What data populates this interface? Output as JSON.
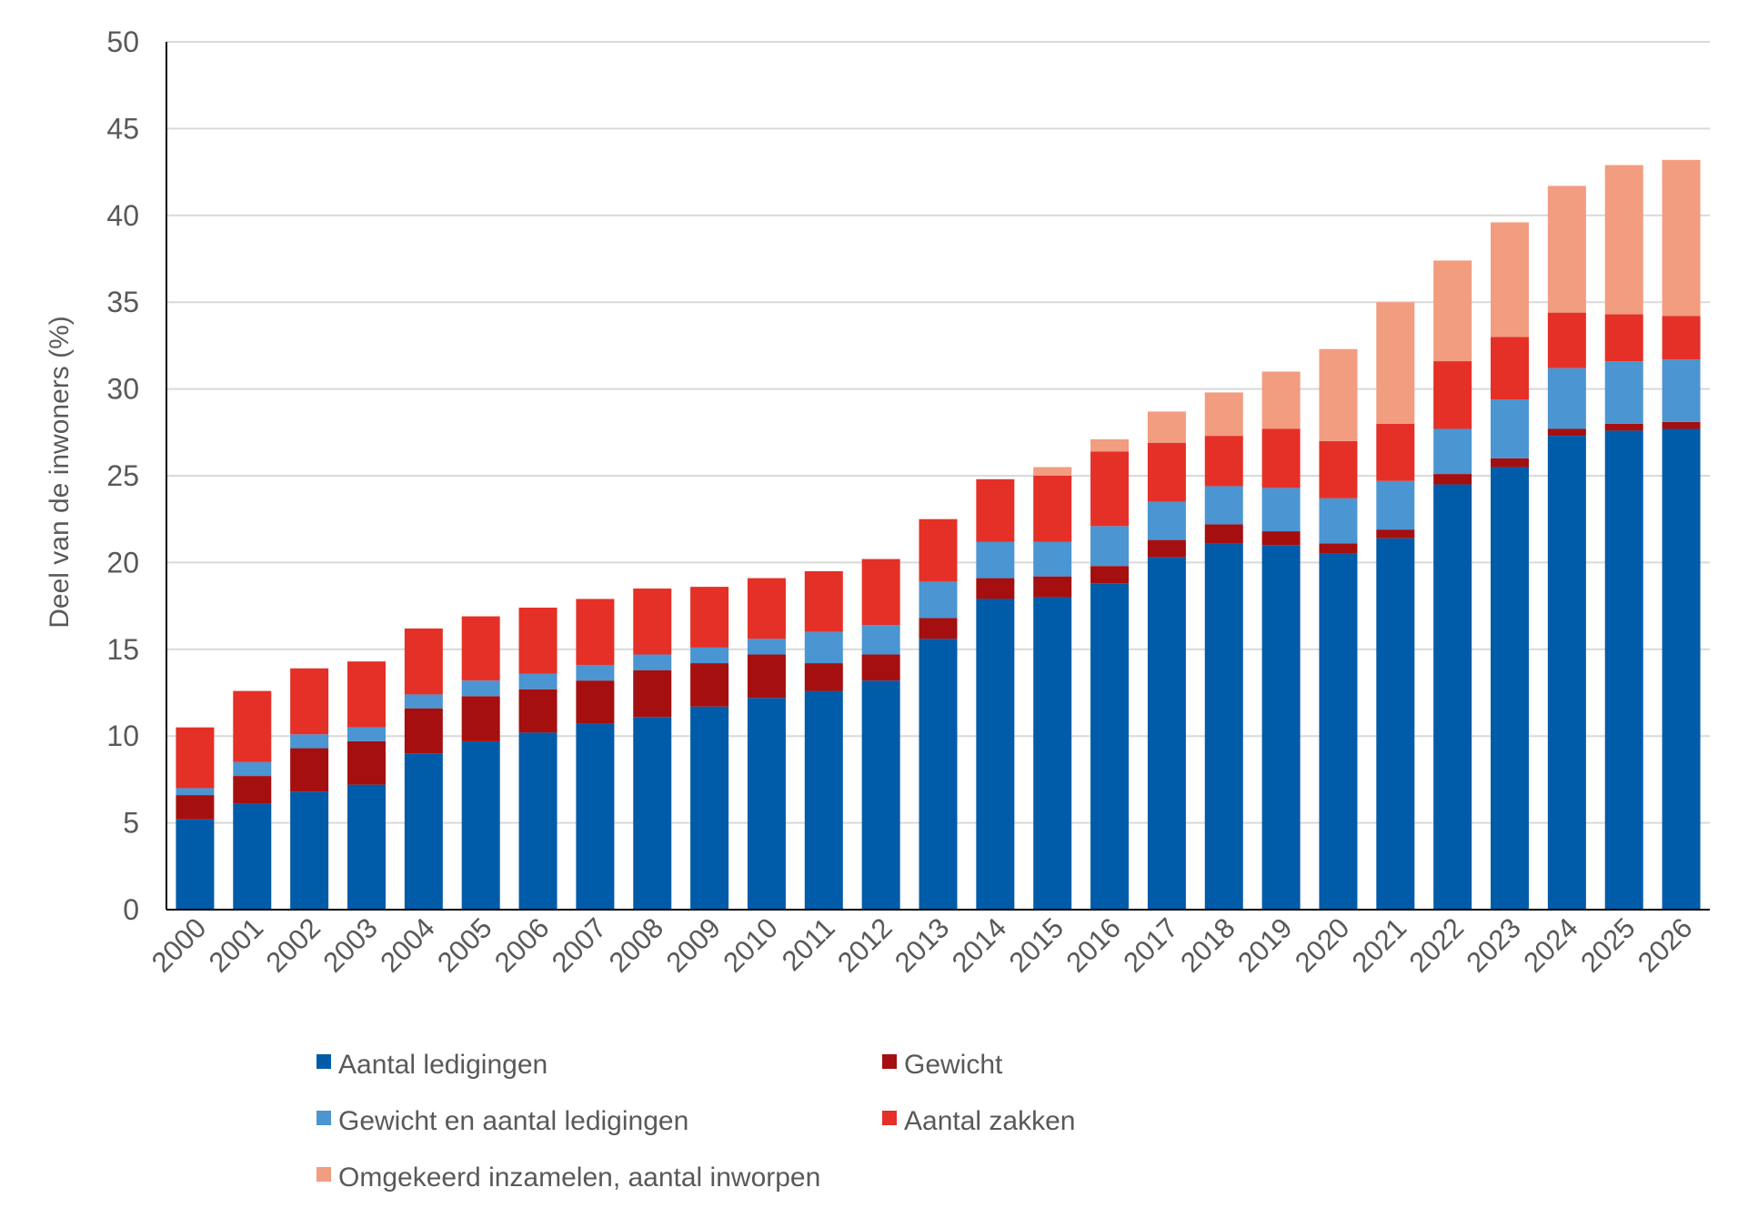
{
  "chart_data": {
    "type": "bar",
    "stacked": true,
    "title": "",
    "xlabel": "",
    "ylabel": "Deel van de inwoners (%)",
    "ylim": [
      0,
      50
    ],
    "yticks": [
      0,
      5,
      10,
      15,
      20,
      25,
      30,
      35,
      40,
      45,
      50
    ],
    "grid": "horizontal",
    "legend_position": "bottom",
    "categories": [
      "2000",
      "2001",
      "2002",
      "2003",
      "2004",
      "2005",
      "2006",
      "2007",
      "2008",
      "2009",
      "2010",
      "2011",
      "2012",
      "2013",
      "2014",
      "2015",
      "2016",
      "2017",
      "2018",
      "2019",
      "2020",
      "2021",
      "2022",
      "2023",
      "2024",
      "2025",
      "2026"
    ],
    "series": [
      {
        "name": "Aantal ledigingen",
        "color": "#005ba8",
        "values": [
          5.2,
          6.1,
          6.8,
          7.2,
          9.0,
          9.7,
          10.2,
          10.7,
          11.1,
          11.7,
          12.2,
          12.6,
          13.2,
          15.6,
          17.9,
          18.0,
          18.8,
          20.3,
          21.1,
          21.0,
          20.5,
          21.4,
          24.5,
          25.5,
          27.3,
          27.6,
          27.7
        ]
      },
      {
        "name": "Gewicht",
        "color": "#a50f0f",
        "values": [
          1.4,
          1.6,
          2.5,
          2.5,
          2.6,
          2.6,
          2.5,
          2.5,
          2.7,
          2.5,
          2.5,
          1.6,
          1.5,
          1.2,
          1.2,
          1.2,
          1.0,
          1.0,
          1.1,
          0.8,
          0.6,
          0.5,
          0.6,
          0.5,
          0.4,
          0.4,
          0.4
        ]
      },
      {
        "name": "Gewicht en aantal ledigingen",
        "color": "#4b95d2",
        "values": [
          0.4,
          0.8,
          0.8,
          0.8,
          0.8,
          0.9,
          0.9,
          0.9,
          0.9,
          0.9,
          0.9,
          1.8,
          1.7,
          2.1,
          2.1,
          2.0,
          2.3,
          2.2,
          2.2,
          2.5,
          2.6,
          2.8,
          2.6,
          3.4,
          3.5,
          3.6,
          3.6
        ]
      },
      {
        "name": "Aantal zakken",
        "color": "#e53027",
        "values": [
          3.5,
          4.1,
          3.8,
          3.8,
          3.8,
          3.7,
          3.8,
          3.8,
          3.8,
          3.5,
          3.5,
          3.5,
          3.8,
          3.6,
          3.6,
          3.8,
          4.3,
          3.4,
          2.9,
          3.4,
          3.3,
          3.3,
          3.9,
          3.6,
          3.2,
          2.7,
          2.5
        ]
      },
      {
        "name": "Omgekeerd inzamelen, aantal inworpen",
        "color": "#f29c80",
        "values": [
          0,
          0,
          0,
          0,
          0,
          0,
          0,
          0,
          0,
          0,
          0,
          0,
          0,
          0,
          0,
          0.5,
          0.7,
          1.8,
          2.5,
          3.3,
          5.3,
          7.0,
          5.8,
          6.6,
          7.3,
          8.6,
          9.0
        ]
      }
    ]
  }
}
